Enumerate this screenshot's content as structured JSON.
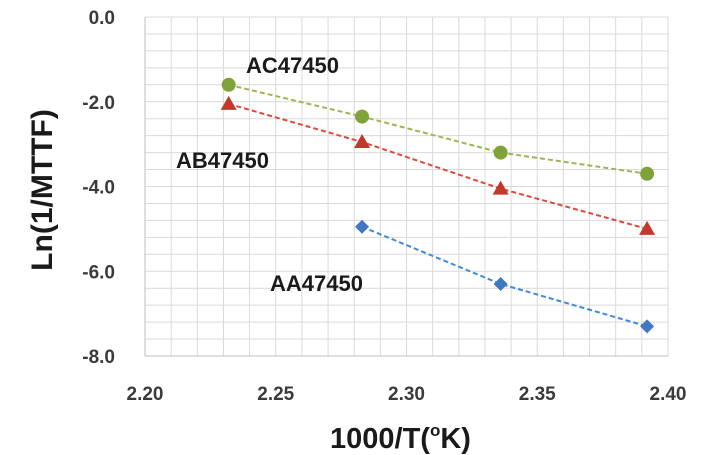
{
  "chart_data": {
    "type": "scatter",
    "xlabel": "1000/T(",
    "xlabel_sup": "o",
    "xlabel_tail": "K)",
    "ylabel": "Ln(1/MTTF)",
    "xlim": [
      2.2,
      2.4
    ],
    "ylim": [
      -8.0,
      0.0
    ],
    "x_ticks": [
      2.2,
      2.25,
      2.3,
      2.35,
      2.4
    ],
    "x_tick_labels": [
      "2.20",
      "2.25",
      "2.30",
      "2.35",
      "2.40"
    ],
    "y_ticks": [
      0.0,
      -2.0,
      -4.0,
      -6.0,
      -8.0
    ],
    "y_tick_labels": [
      "0.0",
      "-2.0",
      "-4.0",
      "-6.0",
      "-8.0"
    ],
    "grid": true,
    "minor_grid_step": {
      "x": 0.01,
      "y": 0.4
    },
    "series": [
      {
        "name": "AC47450",
        "marker": "circle",
        "color": "#7fa33a",
        "line_color": "#9bb755",
        "x": [
          2.232,
          2.283,
          2.336,
          2.392
        ],
        "y": [
          -1.6,
          -2.35,
          -3.2,
          -3.7
        ]
      },
      {
        "name": "AB47450",
        "marker": "triangle",
        "color": "#c0392b",
        "line_color": "#e0483c",
        "x": [
          2.232,
          2.283,
          2.336,
          2.392
        ],
        "y": [
          -2.05,
          -2.95,
          -4.05,
          -5.0
        ]
      },
      {
        "name": "AA47450",
        "marker": "diamond",
        "color": "#3f77c2",
        "line_color": "#3f8ad6",
        "x": [
          2.283,
          2.336,
          2.392
        ],
        "y": [
          -4.95,
          -6.3,
          -7.3
        ]
      }
    ]
  }
}
